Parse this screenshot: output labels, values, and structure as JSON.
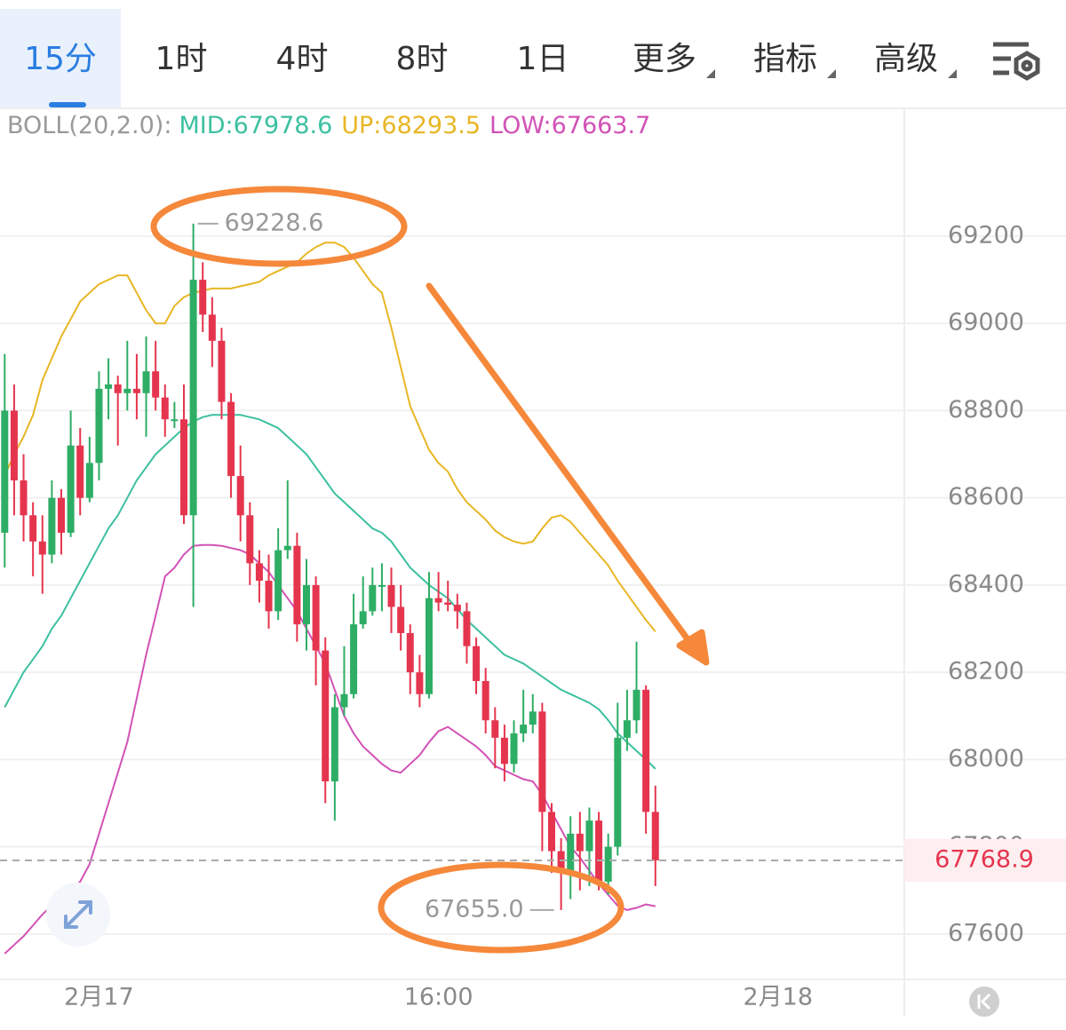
{
  "tabs": [
    "15分",
    "1时",
    "4时",
    "8时",
    "1日",
    "更多",
    "指标",
    "高级"
  ],
  "chart_data": {
    "type": "candlestick",
    "indicator": "BOLL(20,2.0):",
    "open": [
      68520,
      68800,
      68640,
      68560,
      68500,
      68470,
      68600,
      68520,
      68720,
      68600,
      68680,
      68850,
      68860,
      68840,
      68850,
      68840,
      68890,
      68830,
      68780,
      68780,
      68560,
      69100,
      69020,
      68960,
      68820,
      68650,
      68560,
      68450,
      68410,
      68340,
      68480,
      68490,
      68310,
      68400,
      68250,
      67950,
      68120,
      68150,
      68310,
      68340,
      68400,
      68400,
      68350,
      68290,
      68200,
      68150,
      68370,
      68360,
      68355,
      68340,
      68260,
      68180,
      68090,
      68050,
      67990,
      68060,
      68080,
      68110,
      67880,
      67790,
      67740,
      67830,
      67790,
      67860,
      67720,
      67800,
      68050,
      68090,
      68160,
      67880
    ],
    "high": [
      68930,
      68860,
      68700,
      68590,
      68560,
      68640,
      68620,
      68800,
      68760,
      68740,
      68890,
      68920,
      68880,
      68960,
      68930,
      68970,
      68960,
      68860,
      68820,
      68860,
      69228.6,
      69140,
      69060,
      68990,
      68840,
      68720,
      68590,
      68480,
      68470,
      68530,
      68640,
      68520,
      68460,
      68420,
      68280,
      68150,
      68260,
      68380,
      68420,
      68440,
      68450,
      68440,
      68400,
      68310,
      68240,
      68430,
      68430,
      68410,
      68380,
      68360,
      68280,
      68210,
      68120,
      68080,
      68090,
      68160,
      68150,
      68130,
      67900,
      67820,
      67870,
      67880,
      67890,
      67880,
      67830,
      68130,
      68160,
      68270,
      68170,
      67940
    ],
    "low": [
      68440,
      68560,
      68500,
      68420,
      68380,
      68450,
      68470,
      68510,
      68560,
      68590,
      68640,
      68780,
      68720,
      68800,
      68780,
      68740,
      68800,
      68740,
      68760,
      68540,
      68350,
      68980,
      68900,
      68780,
      68600,
      68500,
      68400,
      68360,
      68300,
      68320,
      68460,
      68270,
      68250,
      68170,
      67900,
      67860,
      68100,
      68140,
      68300,
      68330,
      68340,
      68290,
      68250,
      68150,
      68120,
      68140,
      68340,
      68340,
      68300,
      68220,
      68150,
      68060,
      67980,
      67950,
      67970,
      68040,
      68060,
      67790,
      67740,
      67655.0,
      67680,
      67700,
      67710,
      67700,
      67690,
      67780,
      68020,
      68060,
      67830,
      67710
    ],
    "close": [
      68800,
      68640,
      68560,
      68500,
      68470,
      68600,
      68520,
      68720,
      68600,
      68680,
      68850,
      68860,
      68840,
      68850,
      68840,
      68890,
      68830,
      68780,
      68780,
      68560,
      69100,
      69020,
      68960,
      68820,
      68650,
      68560,
      68450,
      68410,
      68340,
      68480,
      68490,
      68310,
      68400,
      68250,
      67950,
      68120,
      68150,
      68310,
      68340,
      68400,
      68400,
      68350,
      68290,
      68200,
      68150,
      68370,
      68360,
      68355,
      68340,
      68260,
      68180,
      68090,
      68050,
      67990,
      68060,
      68080,
      68110,
      67880,
      67790,
      67740,
      67830,
      67790,
      67860,
      67720,
      67800,
      68050,
      68090,
      68160,
      67880,
      67768.9
    ],
    "up_color": "#2ead65",
    "down_color": "#e5354e",
    "series": [
      {
        "name": "MID:",
        "color": "#3cc0a0",
        "values": [
          68120,
          68160,
          68200,
          68230,
          68260,
          68300,
          68330,
          68370,
          68410,
          68450,
          68490,
          68530,
          68560,
          68600,
          68640,
          68670,
          68700,
          68720,
          68740,
          68760,
          68775,
          68785,
          68790,
          68790,
          68790,
          68790,
          68785,
          68780,
          68770,
          68760,
          68740,
          68720,
          68700,
          68670,
          68640,
          68610,
          68590,
          68570,
          68550,
          68530,
          68520,
          68500,
          68470,
          68440,
          68420,
          68400,
          68385,
          68370,
          68345,
          68320,
          68300,
          68280,
          68260,
          68240,
          68230,
          68220,
          68205,
          68190,
          68175,
          68160,
          68150,
          68140,
          68130,
          68115,
          68090,
          68060,
          68040,
          68020,
          68000,
          67978.6
        ]
      },
      {
        "name": "UP:",
        "color": "#e8b624",
        "values": [
          68650,
          68700,
          68740,
          68790,
          68870,
          68920,
          68970,
          69010,
          69050,
          69070,
          69090,
          69100,
          69110,
          69110,
          69070,
          69030,
          69000,
          69000,
          69040,
          69060,
          69070,
          69075,
          69080,
          69080,
          69080,
          69085,
          69090,
          69095,
          69110,
          69120,
          69130,
          69140,
          69160,
          69175,
          69185,
          69185,
          69175,
          69150,
          69120,
          69090,
          69070,
          68990,
          68900,
          68810,
          68760,
          68710,
          68680,
          68660,
          68620,
          68590,
          68570,
          68550,
          68525,
          68510,
          68500,
          68495,
          68500,
          68530,
          68555,
          68560,
          68545,
          68520,
          68495,
          68470,
          68445,
          68410,
          68380,
          68350,
          68320,
          68293.5
        ]
      },
      {
        "name": "LOW:",
        "color": "#d252b6",
        "values": [
          67555,
          67575,
          67595,
          67620,
          67645,
          67665,
          67680,
          67700,
          67720,
          67760,
          67830,
          67900,
          67970,
          68040,
          68140,
          68240,
          68330,
          68420,
          68440,
          68470,
          68490,
          68492,
          68492,
          68490,
          68485,
          68480,
          68470,
          68450,
          68430,
          68400,
          68370,
          68340,
          68300,
          68260,
          68220,
          68160,
          68100,
          68060,
          68030,
          68010,
          67990,
          67975,
          67970,
          67990,
          68010,
          68040,
          68065,
          68075,
          68060,
          68045,
          68030,
          68010,
          67985,
          67975,
          67965,
          67955,
          67950,
          67920,
          67880,
          67840,
          67800,
          67775,
          67745,
          67715,
          67690,
          67665,
          67655,
          67660,
          67668,
          67663.7
        ]
      }
    ],
    "max_label": "69228.6",
    "min_label": "67655.0",
    "xlim": [
      -0.5,
      95.4
    ],
    "xticks": [
      {
        "value": 10,
        "label": "2月17"
      },
      {
        "value": 46,
        "label": "16:00"
      },
      {
        "value": 82,
        "label": "2月18"
      }
    ],
    "ylim": [
      67496,
      69493
    ],
    "yticks": [
      67600,
      67800,
      68000,
      68200,
      68400,
      68600,
      68800,
      69000,
      69200
    ],
    "grid": true
  }
}
